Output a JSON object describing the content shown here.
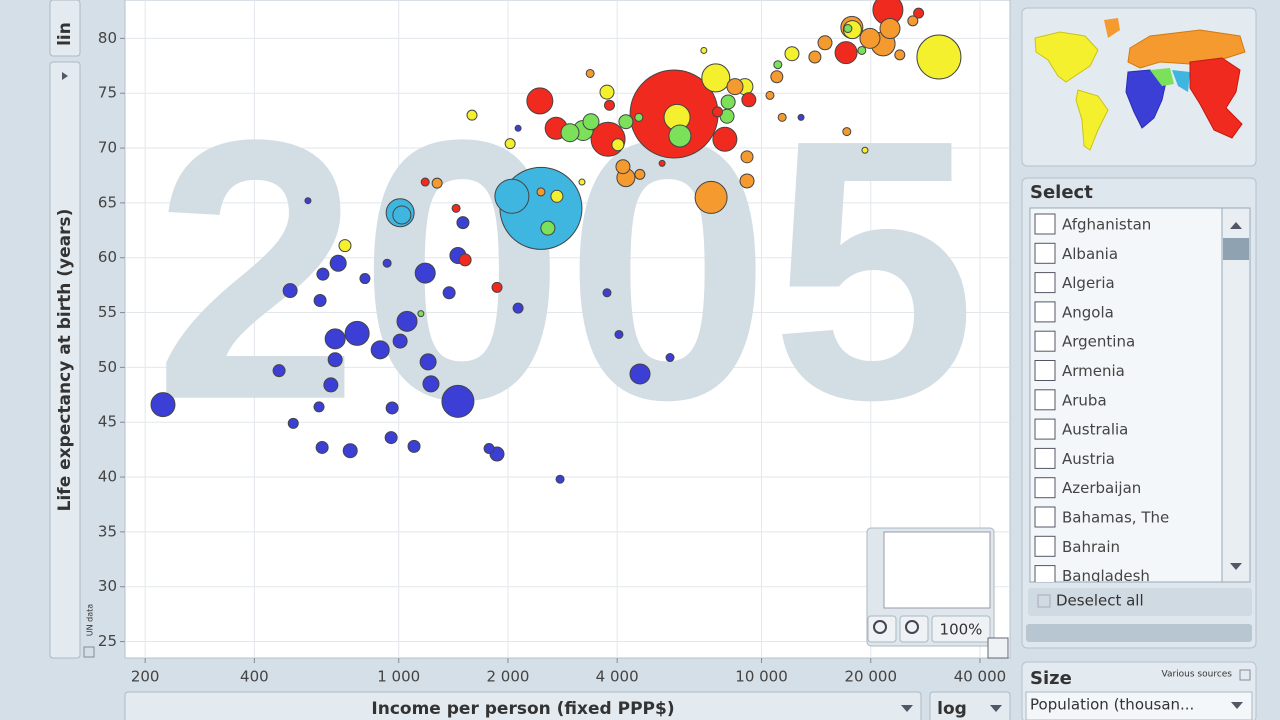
{
  "chart_data": {
    "type": "scatter",
    "watermark": "2005",
    "xlabel": "Income per person (fixed PPP$)",
    "ylabel": "Life expectancy at birth (years)",
    "xscale": "log",
    "yscale": "lin",
    "source": "UN data",
    "zoom": "100%",
    "xlim": [
      176,
      48400
    ],
    "ylim": [
      23.5,
      83.5
    ],
    "xticks": [
      200,
      400,
      {
        "value": 1000,
        "label": "1 000"
      },
      {
        "value": 2000,
        "label": "2 000"
      },
      {
        "value": 4000,
        "label": "4 000"
      },
      {
        "value": 10000,
        "label": "10 000"
      },
      {
        "value": 20000,
        "label": "20 000"
      },
      {
        "value": 40000,
        "label": "40 000"
      }
    ],
    "yticks": [
      25,
      30,
      35,
      40,
      45,
      50,
      55,
      60,
      65,
      70,
      75,
      80
    ],
    "grid": true,
    "series": [
      {
        "color": "#3b3fd6",
        "x": [
          224,
          468,
          512,
          502,
          562,
          607,
          618,
          615,
          603,
          650,
          668,
          681,
          668,
          735,
          768,
          807,
          889,
          929,
          953,
          959,
          1009,
          1054,
          1102,
          1183,
          1205,
          1227,
          1377,
          1456,
          1456,
          1503,
          1774,
          1866,
          2133,
          2133,
          2784,
          3750,
          4046,
          4624,
          5595,
          12850
        ],
        "values": [
          46.6,
          49.7,
          44.9,
          57.0,
          65.2,
          56.1,
          58.5,
          42.7,
          46.4,
          48.4,
          50.7,
          59.5,
          52.6,
          42.4,
          53.1,
          58.1,
          51.6,
          59.5,
          43.6,
          46.3,
          52.4,
          54.2,
          42.8,
          58.6,
          50.5,
          48.5,
          56.8,
          46.9,
          60.2,
          63.2,
          42.6,
          42.1,
          55.4,
          71.8,
          39.8,
          56.8,
          53.0,
          49.4,
          50.9,
          72.8
        ],
        "sizes": [
          93600,
          23400,
          16250,
          31850,
          5850,
          23400,
          23400,
          23400,
          16250,
          31850,
          31850,
          41600,
          65000,
          31850,
          93600,
          16250,
          52650,
          10400,
          23400,
          23400,
          31850,
          65000,
          23400,
          65000,
          41600,
          41600,
          23400,
          166400,
          41600,
          23400,
          16250,
          31850,
          16250,
          5850,
          10400,
          10400,
          10400,
          65000,
          10400,
          5850
        ]
      },
      {
        "color": "#3fb6e0",
        "x": [
          1009,
          1020,
          2051,
          2466
        ],
        "values": [
          64.1,
          63.9,
          65.6,
          64.5
        ],
        "sizes": [
          127400,
          52650,
          187850,
          1092650
        ]
      },
      {
        "color": "#7be05a",
        "x": [
          2577,
          1151,
          2965,
          3222,
          3388,
          4228,
          5957,
          4590,
          8035,
          8090,
          11090,
          17300,
          18900
        ],
        "values": [
          62.7,
          54.9,
          71.4,
          71.6,
          72.4,
          72.4,
          71.1,
          72.8,
          72.9,
          74.2,
          77.6,
          80.9,
          78.9
        ],
        "sizes": [
          31850,
          5850,
          52650,
          65000,
          41600,
          31850,
          78650,
          10400,
          31850,
          31850,
          10400,
          10400,
          10400
        ]
      },
      {
        "color": "#f02a1e",
        "x": [
          2449,
          2716,
          3776,
          5741,
          7925,
          9226,
          17100,
          22300,
          27100,
          1866,
          1524,
          1439,
          1183,
          5321,
          7560,
          3810
        ],
        "values": [
          74.3,
          71.8,
          70.8,
          73.1,
          70.8,
          74.4,
          78.7,
          82.6,
          82.3,
          57.3,
          59.8,
          64.5,
          66.9,
          68.6,
          73.3,
          73.9
        ],
        "sizes": [
          109850,
          78650,
          187850,
          1258400,
          93600,
          31850,
          78650,
          146250,
          16250,
          16250,
          23400,
          10400,
          10400,
          5850,
          16250,
          16250
        ]
      },
      {
        "color": "#f5f02e",
        "x": [
          711,
          1592,
          2028,
          2729,
          3200,
          3750,
          4018,
          5850,
          6934,
          7480,
          9000,
          12130,
          19280,
          30830,
          17800
        ],
        "values": [
          61.1,
          73.0,
          70.4,
          65.6,
          66.9,
          75.1,
          70.3,
          72.8,
          78.9,
          76.4,
          75.6,
          78.6,
          69.8,
          78.3,
          80.8
        ],
        "sizes": [
          23400,
          16250,
          16250,
          23400,
          5850,
          31850,
          23400,
          109850,
          5850,
          127400,
          41600,
          31850,
          5850,
          314600,
          52650
        ]
      },
      {
        "color": "#f59a2e",
        "x": [
          7261,
          4228,
          4150,
          4620,
          3370,
          9120,
          9120,
          8450,
          10550,
          11020,
          14030,
          14960,
          17740,
          19900,
          21630,
          22600,
          24050,
          26120,
          17180,
          11400,
          1276,
          2466
        ],
        "values": [
          65.5,
          67.3,
          68.3,
          67.6,
          76.8,
          67.0,
          69.2,
          75.6,
          74.8,
          76.5,
          78.3,
          79.6,
          81.0,
          80.0,
          79.5,
          80.9,
          78.5,
          81.6,
          71.5,
          72.8,
          66.8,
          66.0
        ],
        "sizes": [
          166400,
          52650,
          31850,
          16250,
          10400,
          31850,
          23400,
          41600,
          10400,
          23400,
          23400,
          31850,
          78650,
          65000,
          93600,
          65000,
          16250,
          16250,
          10400,
          10400,
          16250,
          10400
        ]
      }
    ]
  },
  "panel": {
    "select_title": "Select",
    "countries": [
      "Afghanistan",
      "Albania",
      "Algeria",
      "Angola",
      "Argentina",
      "Armenia",
      "Aruba",
      "Australia",
      "Austria",
      "Azerbaijan",
      "Bahamas, The",
      "Bahrain",
      "Bangladesh"
    ],
    "deselect": "Deselect all",
    "size_title": "Size",
    "size_source": "Various sources",
    "size_measure": "Population (thousan..."
  }
}
